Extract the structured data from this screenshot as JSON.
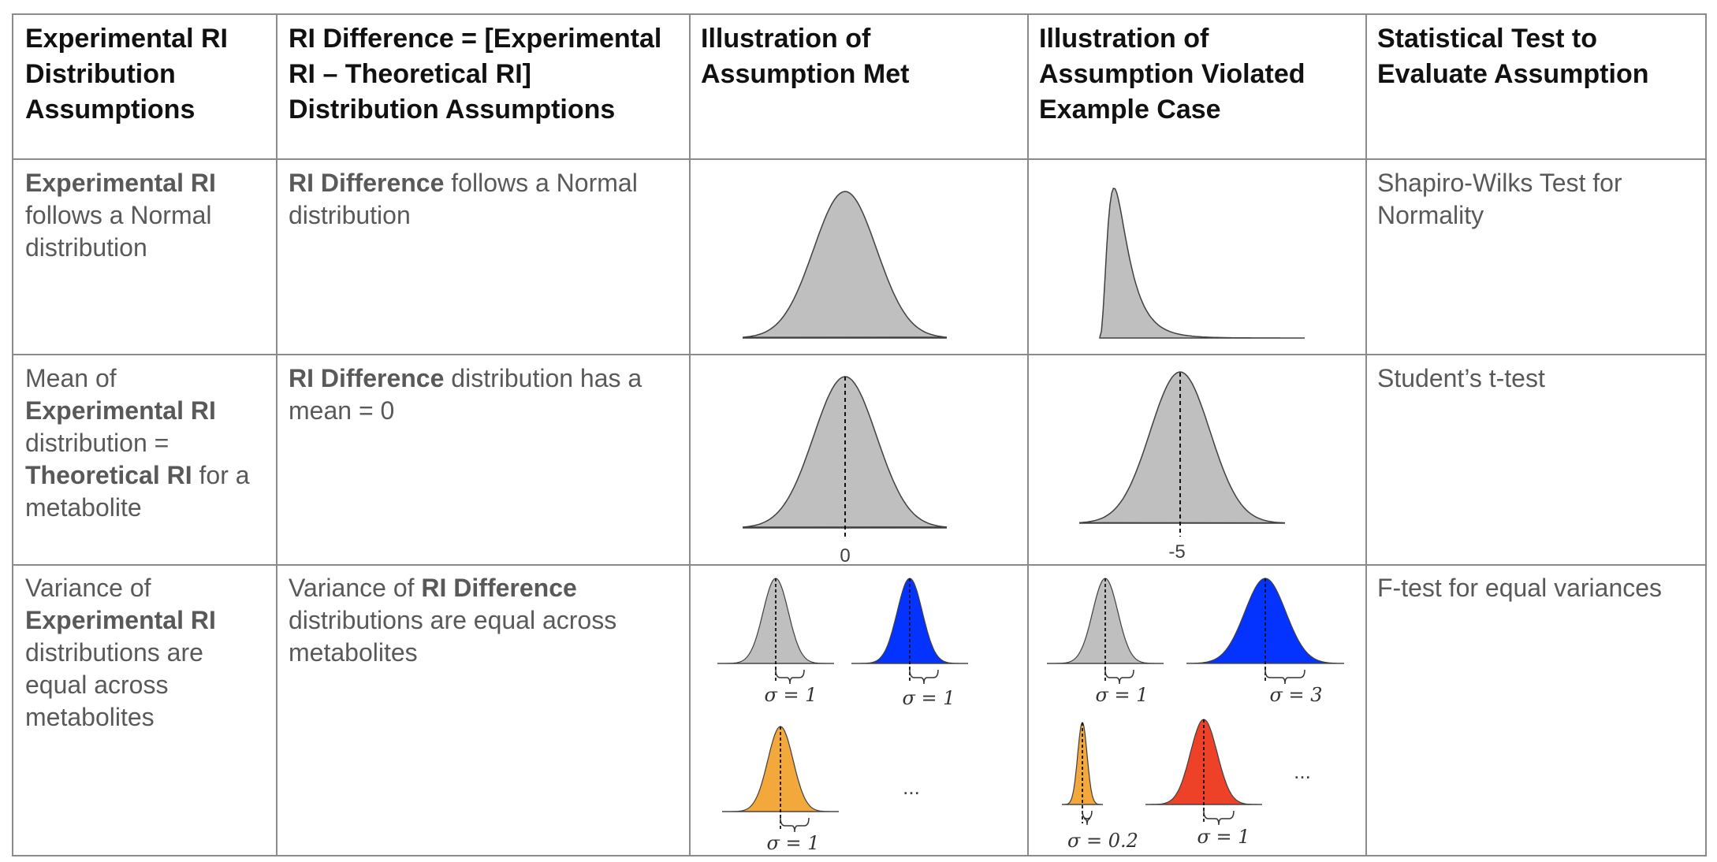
{
  "headers": [
    "Experimental RI Distribution Assumptions",
    "RI Difference = [Experimental RI – Theoretical RI] Distribution Assumptions",
    "Illustration of Assumption Met",
    "Illustration of Assumption Violated Example Case",
    "Statistical Test to Evaluate Assumption"
  ],
  "rows": [
    {
      "assumption": {
        "bold": "Experimental RI",
        "rest": " follows a Normal distribution"
      },
      "difference": {
        "bold": "RI Difference",
        "rest": " follows a Normal distribution"
      },
      "test": "Shapiro-Wilks Test for Normality"
    },
    {
      "assumption": {
        "p1": "Mean of ",
        "b1": "Experimental RI",
        "p2": " distribution = ",
        "b2": "Theoretical RI",
        "p3": " for a metabolite"
      },
      "difference": {
        "bold": "RI Difference",
        "rest": " distribution has a mean = 0"
      },
      "met_label": "0",
      "violated_label": "-5",
      "test": "Student’s t-test"
    },
    {
      "assumption": {
        "p1": "Variance of ",
        "b1": "Experimental RI",
        "p2": " distributions are equal across metabolites"
      },
      "difference": {
        "p1": "Variance of ",
        "b1": "RI Difference",
        "p2": " distributions are equal across metabolites"
      },
      "met_sigmas": [
        "σ = 1",
        "σ = 1",
        "σ = 1"
      ],
      "violated_sigmas": [
        "σ = 1",
        "σ = 3",
        "σ = 0.2",
        "σ = 1"
      ],
      "ellipsis": "...",
      "test": "F-test for equal variances"
    }
  ],
  "colors": {
    "gray": "#bfbfbf",
    "blue": "#0433ff",
    "orange": "#f2a83b",
    "red": "#ee4228",
    "grid": "#8a8a8a"
  }
}
